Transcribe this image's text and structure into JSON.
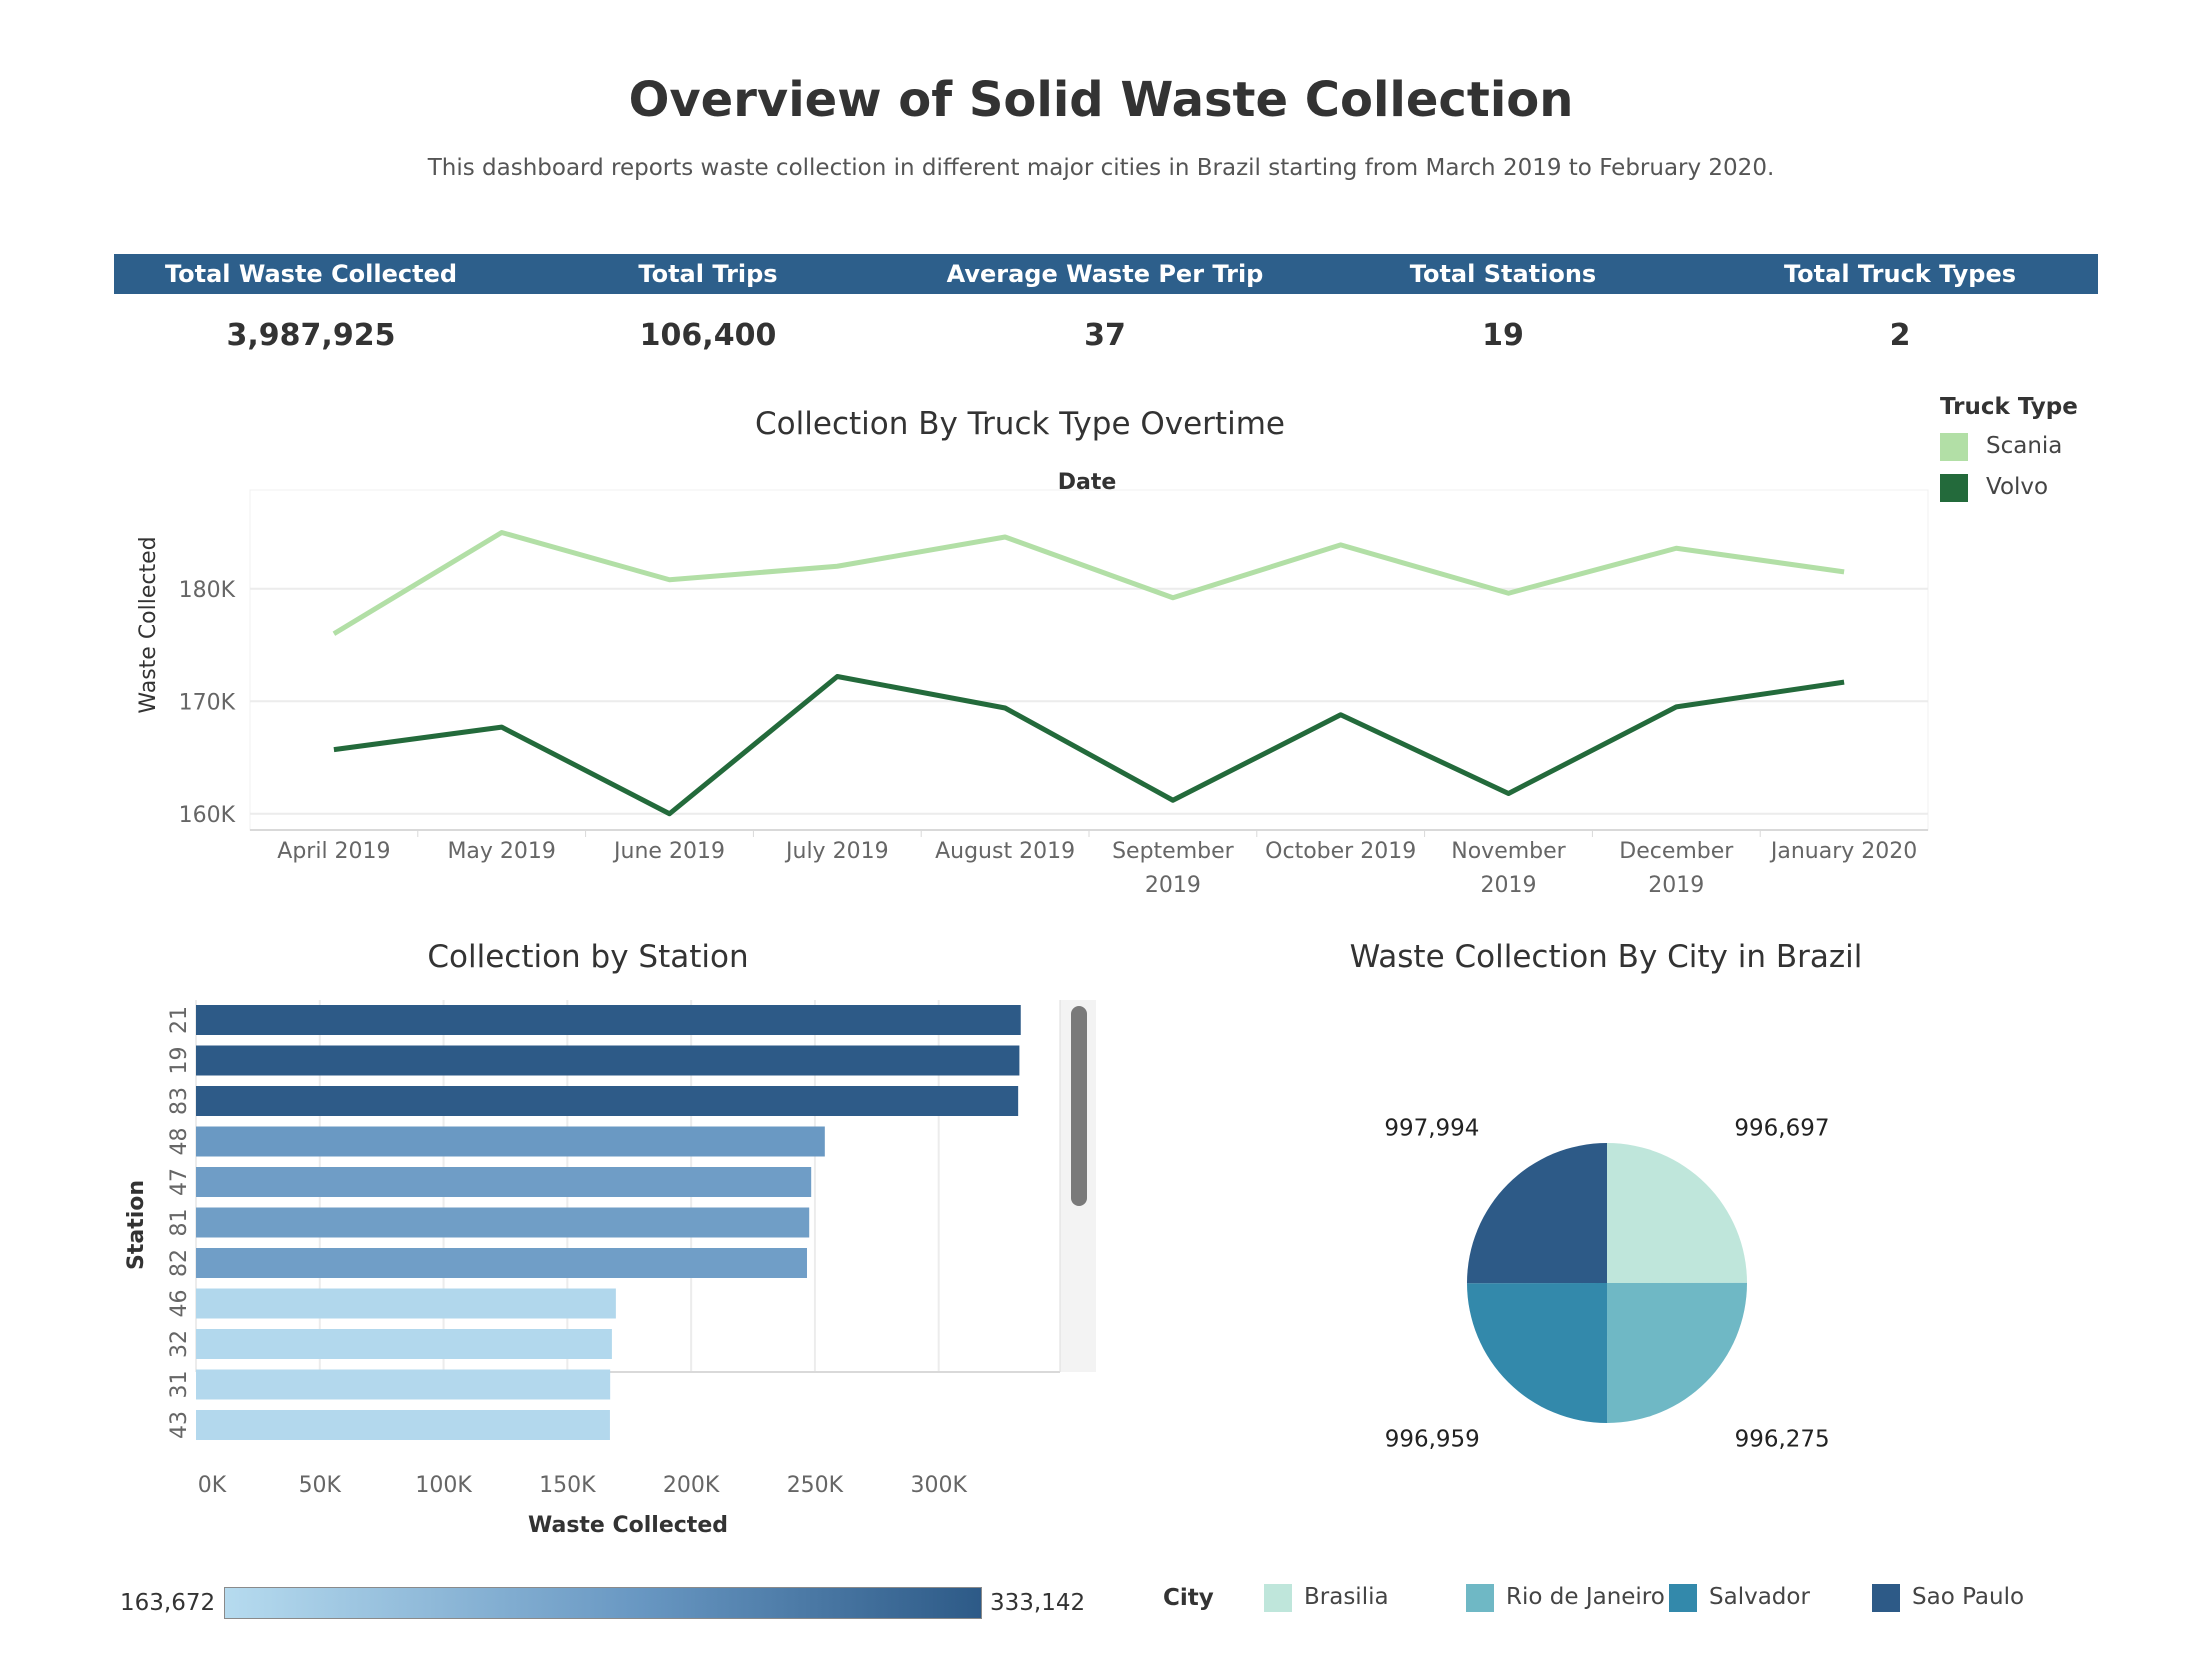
{
  "title": "Overview of Solid Waste Collection",
  "subtitle": "This dashboard reports waste collection in different major cities in Brazil starting from March 2019 to February 2020.",
  "colors": {
    "header_bg": "#2d5f8b",
    "scania": "#b2dfa6",
    "volvo": "#236a3b",
    "bar_high": "#2d5a87",
    "bar_mid": "#6897c2",
    "bar_low": "#b6dbef",
    "brasilia": "#bfe6db",
    "rio": "#6fb8c5",
    "salvador": "#3389ab",
    "sao_paulo": "#2d5a87"
  },
  "kpis": [
    {
      "label": "Total Waste Collected",
      "value": "3,987,925"
    },
    {
      "label": "Total Trips",
      "value": "106,400"
    },
    {
      "label": "Average Waste Per Trip",
      "value": "37"
    },
    {
      "label": "Total Stations",
      "value": "19"
    },
    {
      "label": "Total Truck Types",
      "value": "2"
    }
  ],
  "truck_legend": {
    "title": "Truck Type",
    "items": [
      "Scania",
      "Volvo"
    ]
  },
  "city_legend": {
    "title": "City",
    "items": [
      "Brasilia",
      "Rio de Janeiro",
      "Salvador",
      "Sao Paulo"
    ]
  },
  "color_scale": {
    "min_label": "163,672",
    "max_label": "333,142"
  },
  "scrollbar_icon": "vertical-scrollbar",
  "chart_data": [
    {
      "type": "line",
      "title": "Collection By Truck Type Overtime",
      "xlabel": "Date",
      "ylabel": "Waste Collected",
      "categories": [
        [
          "April 2019"
        ],
        [
          "May 2019"
        ],
        [
          "June 2019"
        ],
        [
          "July 2019"
        ],
        [
          "August 2019"
        ],
        [
          "September",
          "2019"
        ],
        [
          "October 2019"
        ],
        [
          "November",
          "2019"
        ],
        [
          "December",
          "2019"
        ],
        [
          "January 2020"
        ]
      ],
      "ylim": [
        159000,
        187000
      ],
      "yticks": [
        160000,
        170000,
        180000
      ],
      "ytick_labels": [
        "160K",
        "170K",
        "180K"
      ],
      "grid": true,
      "legend": "top-right",
      "series": [
        {
          "name": "Scania",
          "values": [
            176000,
            185000,
            180800,
            182000,
            184600,
            179200,
            183900,
            179600,
            183600,
            181500
          ]
        },
        {
          "name": "Volvo",
          "values": [
            165700,
            167700,
            160000,
            172200,
            169400,
            161200,
            168800,
            161800,
            169500,
            171700
          ]
        }
      ]
    },
    {
      "type": "bar",
      "orientation": "horizontal",
      "title": "Collection by Station",
      "xlabel": "Waste Collected",
      "ylabel": "Station",
      "xlim": [
        0,
        349000
      ],
      "xticks": [
        0,
        50000,
        100000,
        150000,
        200000,
        250000,
        300000
      ],
      "xtick_labels": [
        "0K",
        "50K",
        "100K",
        "150K",
        "200K",
        "250K",
        "300K"
      ],
      "grid": true,
      "categories": [
        "21",
        "19",
        "83",
        "48",
        "47",
        "81",
        "82",
        "46",
        "32",
        "31",
        "43"
      ],
      "values": [
        333142,
        332600,
        332100,
        254000,
        248500,
        247700,
        246800,
        169600,
        168000,
        167300,
        167200
      ],
      "color_scale_min": 163672,
      "color_scale_max": 333142
    },
    {
      "type": "pie",
      "title": "Waste Collection By City in Brazil",
      "legend": "bottom",
      "labels": [
        "Brasilia",
        "Rio de Janeiro",
        "Salvador",
        "Sao Paulo"
      ],
      "values": [
        996697,
        996275,
        996959,
        997994
      ],
      "value_labels": [
        "996,697",
        "996,275",
        "996,959",
        "997,994"
      ]
    }
  ]
}
